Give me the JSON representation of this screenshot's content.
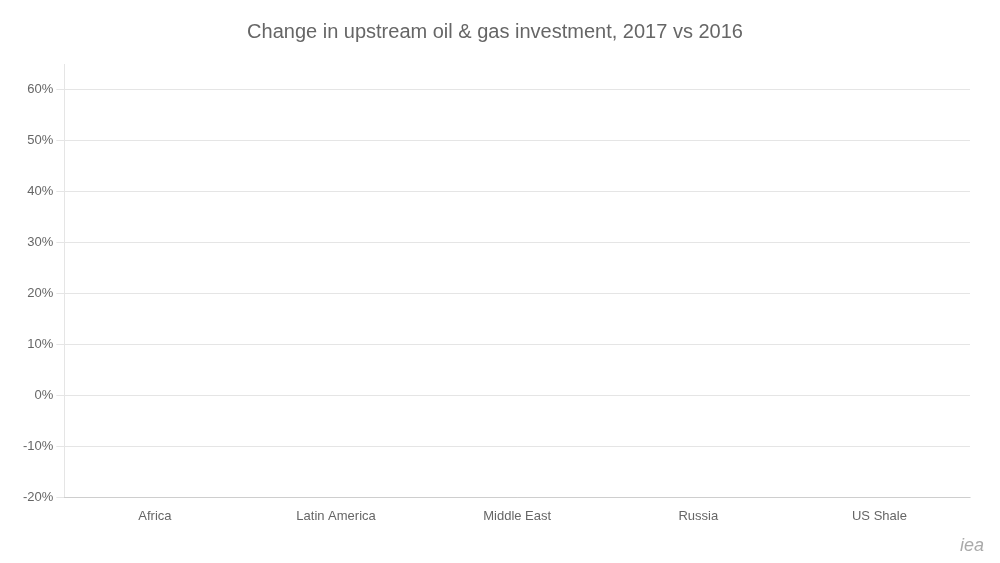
{
  "chart_data": {
    "type": "bar",
    "title": "Change in upstream oil & gas investment, 2017 vs 2016",
    "categories": [
      "Africa",
      "Latin America",
      "Middle East",
      "Russia",
      "US Shale"
    ],
    "values": [
      0,
      0,
      0,
      0,
      0
    ],
    "ylim": [
      -20,
      65
    ],
    "yticks": [
      {
        "value": -20,
        "label": "-20%"
      },
      {
        "value": -10,
        "label": "-10%"
      },
      {
        "value": 0,
        "label": "0%"
      },
      {
        "value": 10,
        "label": "10%"
      },
      {
        "value": 20,
        "label": "20%"
      },
      {
        "value": 30,
        "label": "30%"
      },
      {
        "value": 40,
        "label": "40%"
      },
      {
        "value": 50,
        "label": "50%"
      },
      {
        "value": 60,
        "label": "60%"
      }
    ],
    "grid": true,
    "annotations": [
      "iea"
    ]
  }
}
